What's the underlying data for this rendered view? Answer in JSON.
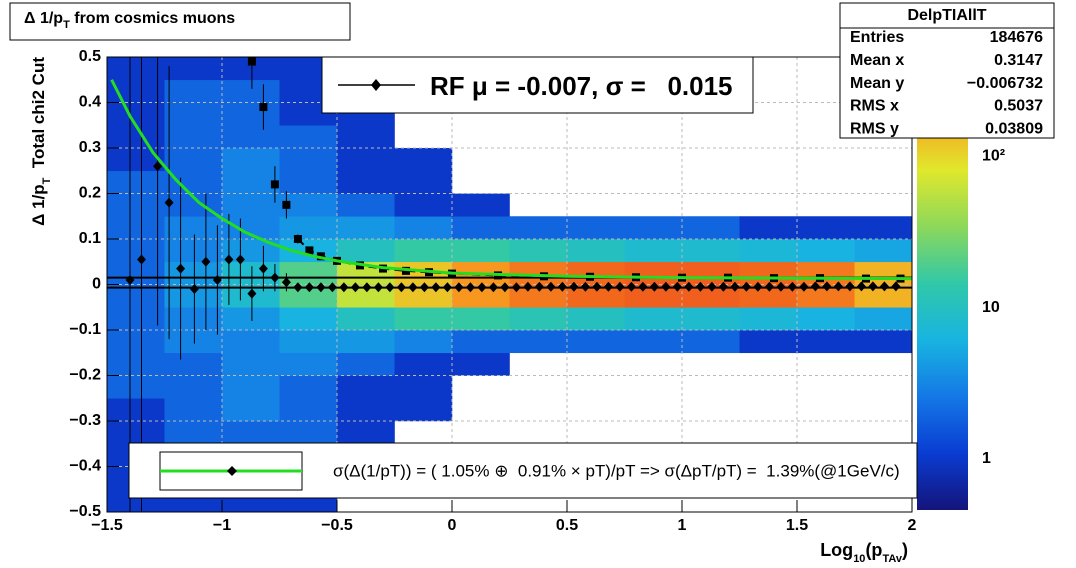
{
  "chart_data": {
    "type": "heatmap",
    "title": [
      "Δ 1/p",
      "T",
      " from cosmics muons"
    ],
    "xlabel": [
      "Log",
      "10",
      "(p",
      "TAv",
      ")"
    ],
    "ylabel": [
      "Δ 1/p",
      "T",
      "  Total chi2 Cut"
    ],
    "xlim": [
      -1.5,
      2
    ],
    "ylim": [
      -0.5,
      0.5
    ],
    "xticks": [
      {
        "value": -1.5,
        "label": "−1.5"
      },
      {
        "value": -1,
        "label": "−1"
      },
      {
        "value": -0.5,
        "label": "−0.5"
      },
      0,
      0.5,
      1,
      1.5,
      2
    ],
    "yticks": [
      {
        "value": -0.5,
        "label": "−0.5"
      },
      {
        "value": -0.4,
        "label": "−0.4"
      },
      {
        "value": -0.3,
        "label": "−0.3"
      },
      {
        "value": -0.2,
        "label": "−0.2"
      },
      {
        "value": -0.1,
        "label": "−0.1"
      },
      0,
      0.1,
      0.2,
      0.3,
      0.4,
      0.5
    ],
    "grid": true,
    "zscale": "log",
    "zlim": [
      0.46,
      455
    ],
    "zticks": [
      1,
      10,
      {
        "value": 100,
        "label": "10²"
      }
    ],
    "palette": [
      "#14147a",
      "#0a3cd2",
      "#1478e6",
      "#18b4e0",
      "#30c8a8",
      "#8cd85a",
      "#e0e82c",
      "#f89c20",
      "#e8261a"
    ],
    "heatmap": {
      "xbins": [
        -1.5,
        -1.25,
        -1,
        -0.75,
        -0.5,
        -0.25,
        0,
        0.25,
        0.5,
        0.75,
        1,
        1.25,
        1.5,
        1.75,
        2
      ],
      "ybins": [
        -0.5,
        -0.45,
        -0.4,
        -0.35,
        -0.3,
        -0.25,
        -0.2,
        -0.15,
        -0.1,
        -0.05,
        0,
        0.05,
        0.1,
        0.15,
        0.2,
        0.25,
        0.3,
        0.35,
        0.4,
        0.45,
        0.5
      ],
      "counts": [
        [
          1,
          1,
          1,
          1,
          0,
          0,
          0,
          0,
          0,
          0,
          0,
          0,
          0,
          0
        ],
        [
          1,
          2,
          2,
          1,
          0,
          0,
          0,
          0,
          0,
          0,
          0,
          0,
          0,
          0
        ],
        [
          1,
          2,
          2,
          1,
          1,
          0,
          0,
          0,
          0,
          0,
          0,
          0,
          0,
          0
        ],
        [
          1,
          2,
          2,
          2,
          1,
          0,
          0,
          0,
          0,
          0,
          0,
          0,
          0,
          0
        ],
        [
          1,
          2,
          3,
          2,
          1,
          1,
          0,
          0,
          0,
          0,
          0,
          0,
          0,
          0
        ],
        [
          2,
          2,
          3,
          2,
          1,
          1,
          0,
          0,
          0,
          0,
          0,
          0,
          0,
          0
        ],
        [
          2,
          2,
          3,
          3,
          2,
          1,
          1,
          0,
          0,
          0,
          0,
          0,
          0,
          0
        ],
        [
          2,
          3,
          3,
          4,
          4,
          3,
          2,
          2,
          2,
          2,
          2,
          1,
          1,
          1
        ],
        [
          2,
          3,
          4,
          6,
          10,
          15,
          15,
          12,
          10,
          8,
          8,
          7,
          6,
          5
        ],
        [
          2,
          4,
          8,
          20,
          60,
          120,
          200,
          250,
          280,
          300,
          300,
          280,
          250,
          150
        ],
        [
          2,
          4,
          8,
          20,
          60,
          120,
          200,
          250,
          280,
          300,
          300,
          280,
          250,
          150
        ],
        [
          2,
          3,
          4,
          6,
          10,
          15,
          15,
          12,
          10,
          8,
          8,
          7,
          6,
          5
        ],
        [
          2,
          3,
          3,
          4,
          4,
          3,
          2,
          2,
          2,
          2,
          2,
          1,
          1,
          1
        ],
        [
          2,
          2,
          3,
          3,
          2,
          1,
          1,
          0,
          0,
          0,
          0,
          0,
          0,
          0
        ],
        [
          2,
          2,
          3,
          2,
          1,
          1,
          0,
          0,
          0,
          0,
          0,
          0,
          0,
          0
        ],
        [
          1,
          2,
          3,
          2,
          1,
          1,
          0,
          0,
          0,
          0,
          0,
          0,
          0,
          0
        ],
        [
          1,
          2,
          2,
          2,
          1,
          0,
          0,
          0,
          0,
          0,
          0,
          0,
          0,
          0
        ],
        [
          1,
          2,
          2,
          1,
          1,
          0,
          0,
          0,
          0,
          0,
          0,
          0,
          0,
          0
        ],
        [
          1,
          2,
          2,
          1,
          0,
          0,
          0,
          0,
          0,
          0,
          0,
          0,
          0,
          0
        ],
        [
          1,
          1,
          1,
          1,
          0,
          0,
          0,
          0,
          0,
          0,
          0,
          0,
          0,
          0
        ]
      ]
    },
    "hlines": [
      -0.007,
      0.015
    ],
    "series": [
      {
        "name": "RF μ = -0.007, σ =   0.015",
        "marker": "diamond",
        "color": "#000000",
        "x": [
          -1.4,
          -1.35,
          -1.28,
          -1.23,
          -1.18,
          -1.12,
          -1.07,
          -1.02,
          -0.97,
          -0.92,
          -0.87,
          -0.82,
          -0.77,
          -0.72,
          -0.67,
          -0.62,
          -0.57,
          -0.52,
          -0.47,
          -0.42,
          -0.37,
          -0.32,
          -0.27,
          -0.22,
          -0.17,
          -0.12,
          -0.07,
          -0.02,
          0.03,
          0.08,
          0.13,
          0.18,
          0.23,
          0.28,
          0.33,
          0.38,
          0.43,
          0.48,
          0.53,
          0.58,
          0.63,
          0.68,
          0.73,
          0.78,
          0.83,
          0.88,
          0.93,
          0.98,
          1.03,
          1.08,
          1.13,
          1.18,
          1.23,
          1.28,
          1.33,
          1.38,
          1.43,
          1.48,
          1.53,
          1.58,
          1.63,
          1.68,
          1.73,
          1.78,
          1.83,
          1.88,
          1.93
        ],
        "values": [
          0.01,
          0.055,
          0.26,
          0.18,
          0.035,
          -0.01,
          0.05,
          0.01,
          0.055,
          0.055,
          -0.02,
          0.035,
          0.015,
          0.005,
          -0.006,
          -0.006,
          -0.006,
          -0.006,
          -0.006,
          -0.006,
          -0.006,
          -0.006,
          -0.006,
          -0.006,
          -0.006,
          -0.006,
          -0.006,
          -0.006,
          -0.006,
          -0.006,
          -0.006,
          -0.006,
          -0.006,
          -0.006,
          -0.005,
          -0.005,
          -0.005,
          -0.005,
          -0.005,
          -0.005,
          -0.005,
          -0.005,
          -0.005,
          -0.005,
          -0.005,
          -0.005,
          -0.005,
          -0.005,
          -0.005,
          -0.005,
          -0.005,
          -0.005,
          -0.005,
          -0.005,
          -0.005,
          -0.005,
          -0.005,
          -0.005,
          -0.005,
          -0.004,
          -0.004,
          -0.004,
          -0.004,
          -0.004,
          -0.004,
          -0.004,
          -0.004
        ],
        "errors": [
          0.6,
          0.6,
          0.35,
          0.3,
          0.2,
          0.12,
          0.15,
          0.12,
          0.1,
          0.09,
          0.06,
          0.05,
          0.03,
          0.02,
          0.002,
          0.002,
          0.002,
          0.002,
          0.002,
          0.002,
          0.002,
          0.002,
          0.002,
          0.002,
          0.002,
          0.002,
          0.002,
          0.002,
          0.002,
          0.002,
          0.002,
          0.002,
          0.002,
          0.002,
          0.002,
          0.002,
          0.002,
          0.002,
          0.002,
          0.002,
          0.002,
          0.002,
          0.002,
          0.002,
          0.002,
          0.002,
          0.002,
          0.002,
          0.002,
          0.002,
          0.002,
          0.002,
          0.002,
          0.002,
          0.002,
          0.002,
          0.002,
          0.002,
          0.002,
          0.002,
          0.002,
          0.002,
          0.002,
          0.002,
          0.002,
          0.002,
          0.002
        ]
      },
      {
        "marker": "square",
        "color": "#000000",
        "line": "dashed",
        "x": [
          -0.87,
          -0.82,
          -0.77,
          -0.72,
          -0.67,
          -0.62,
          -0.57,
          -0.5,
          -0.4,
          -0.3,
          -0.2,
          -0.1,
          0,
          0.2,
          0.4,
          0.6,
          0.8,
          1,
          1.2,
          1.4,
          1.6,
          1.8,
          1.95
        ],
        "values": [
          0.49,
          0.39,
          0.22,
          0.175,
          0.1,
          0.075,
          0.062,
          0.052,
          0.042,
          0.035,
          0.03,
          0.027,
          0.024,
          0.02,
          0.018,
          0.017,
          0.016,
          0.015,
          0.015,
          0.014,
          0.014,
          0.013,
          0.013
        ],
        "errors": [
          0.06,
          0.05,
          0.04,
          0.03,
          0.01,
          0.005,
          0.002,
          0.002,
          0.002,
          0.002,
          0.002,
          0.002,
          0.002,
          0.002,
          0.002,
          0.002,
          0.002,
          0.002,
          0.002,
          0.002,
          0.002,
          0.002,
          0.002
        ]
      },
      {
        "name": "σ(Δ(1/pT)) = ( 1.05% ⊕  0.91% × pT)/pT => σ(ΔpT/pT) =  1.39%(@1GeV/c)",
        "marker": "line",
        "color": "#22dd22",
        "x": [
          -1.48,
          -1.4,
          -1.3,
          -1.2,
          -1.1,
          -1,
          -0.9,
          -0.8,
          -0.7,
          -0.6,
          -0.5,
          -0.3,
          0,
          0.5,
          1,
          1.5,
          2
        ],
        "values": [
          0.45,
          0.37,
          0.29,
          0.23,
          0.18,
          0.145,
          0.115,
          0.093,
          0.075,
          0.062,
          0.052,
          0.037,
          0.025,
          0.018,
          0.015,
          0.014,
          0.013
        ]
      }
    ],
    "stats": {
      "title": "DelpTIAllT",
      "rows": [
        [
          "Entries",
          "184676"
        ],
        [
          "Mean x",
          "0.3147"
        ],
        [
          "Mean y",
          "−0.006732"
        ],
        [
          "RMS x",
          "0.5037"
        ],
        [
          "RMS y",
          "0.03809"
        ]
      ]
    }
  }
}
